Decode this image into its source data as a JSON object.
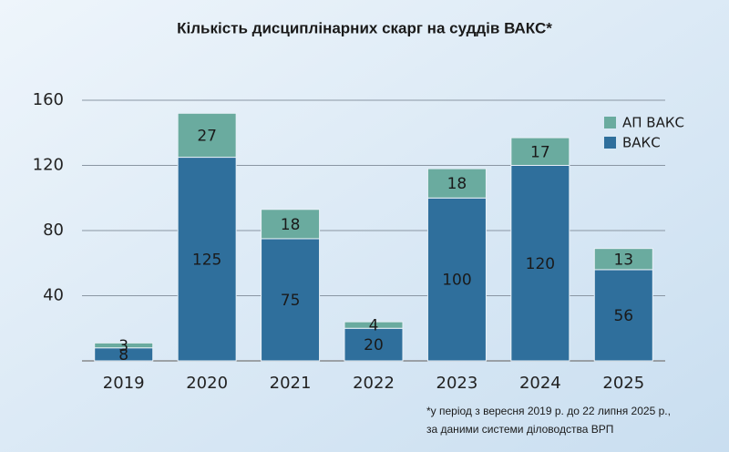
{
  "chart_data": {
    "type": "stacked_bar",
    "title": "Кількість дисциплінарних скарг на суддів ВАКС*",
    "categories": [
      "2019",
      "2020",
      "2021",
      "2022",
      "2023",
      "2024",
      "2025"
    ],
    "series": [
      {
        "name": "ВАКС",
        "color": "#2f6f9c",
        "values": [
          8,
          125,
          75,
          20,
          100,
          120,
          56
        ]
      },
      {
        "name": "АП ВАКС",
        "color": "#6aab9f",
        "values": [
          3,
          27,
          18,
          4,
          18,
          17,
          13
        ]
      }
    ],
    "ylim": [
      0,
      160
    ],
    "yticks": [
      40,
      80,
      120,
      160
    ],
    "grid": true,
    "legend": "top-right",
    "footnote": [
      "*у період з вересня 2019 р. до 22 липня 2025 р.,",
      "за даними системи діловодства ВРП"
    ]
  }
}
